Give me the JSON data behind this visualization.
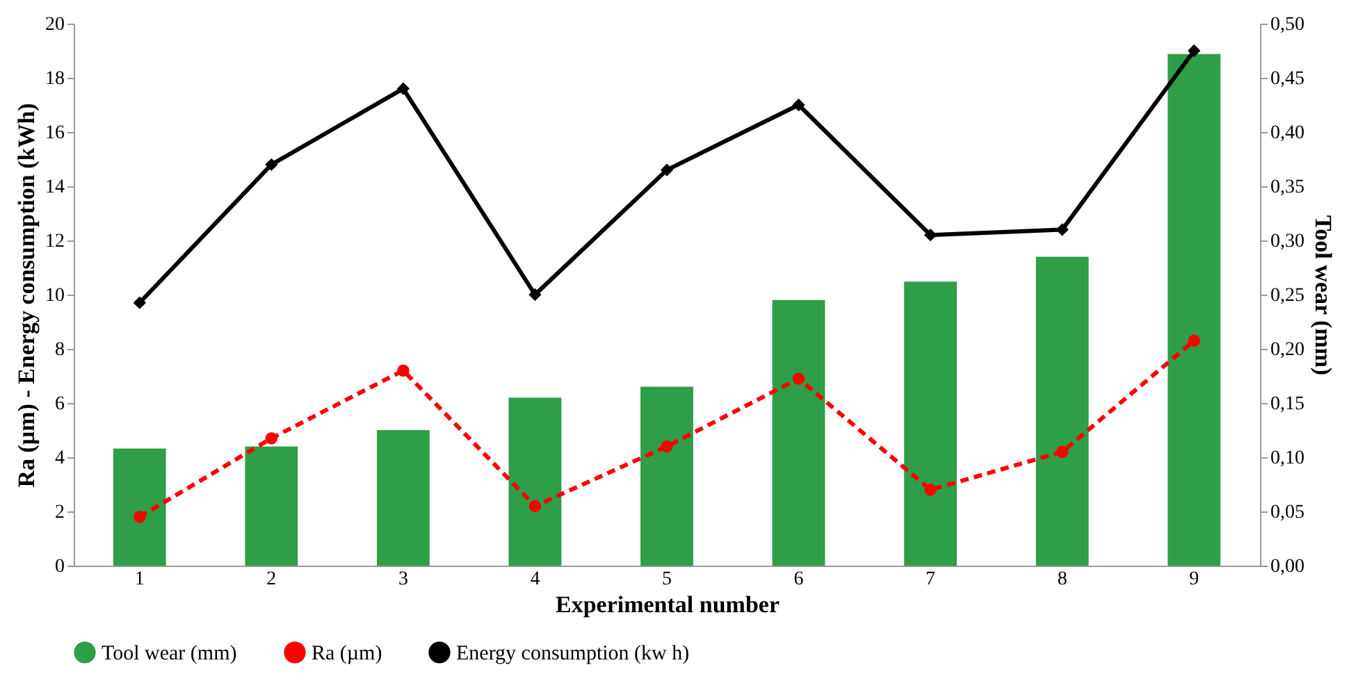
{
  "chart_data": {
    "type": "bar",
    "xlabel": "Experimental number",
    "ylabel": "Ra (µm) - Energy consumption (kWh)",
    "y2label": "Tool wear (mm)",
    "categories": [
      "1",
      "2",
      "3",
      "4",
      "5",
      "6",
      "7",
      "8",
      "9"
    ],
    "series": [
      {
        "name": "Tool wear (mm)",
        "axis": "y2",
        "color": "#2e9e48",
        "values": [
          0.108,
          0.11,
          0.125,
          0.155,
          0.165,
          0.245,
          0.262,
          0.285,
          0.472
        ]
      },
      {
        "name": "Ra (µm)",
        "type": "line",
        "color": "#ff0000",
        "line_style": "dashed",
        "marker": "circle",
        "values": [
          1.8,
          4.7,
          7.2,
          2.2,
          4.4,
          6.9,
          2.8,
          4.2,
          8.3
        ]
      },
      {
        "name": "Energy consumption (kw h)",
        "type": "line",
        "color": "#000000",
        "line_style": "solid",
        "marker": "diamond",
        "values": [
          9.7,
          14.8,
          17.6,
          10.0,
          14.6,
          17.0,
          12.2,
          12.4,
          19.0
        ]
      }
    ],
    "ylim": [
      0,
      20
    ],
    "yticks": [
      0,
      2,
      4,
      6,
      8,
      10,
      12,
      14,
      16,
      18,
      20
    ],
    "y2lim": [
      0,
      0.5
    ],
    "y2ticks": [
      {
        "value": 0,
        "label": "0,00"
      },
      {
        "value": 0.05,
        "label": "0,05"
      },
      {
        "value": 0.1,
        "label": "0,10"
      },
      {
        "value": 0.15,
        "label": "0,15"
      },
      {
        "value": 0.2,
        "label": "0,20"
      },
      {
        "value": 0.25,
        "label": "0,25"
      },
      {
        "value": 0.3,
        "label": "0,30"
      },
      {
        "value": 0.35,
        "label": "0,35"
      },
      {
        "value": 0.4,
        "label": "0,40"
      },
      {
        "value": 0.45,
        "label": "0,45"
      },
      {
        "value": 0.5,
        "label": "0,50"
      }
    ],
    "grid": false,
    "legend": "bottom"
  }
}
